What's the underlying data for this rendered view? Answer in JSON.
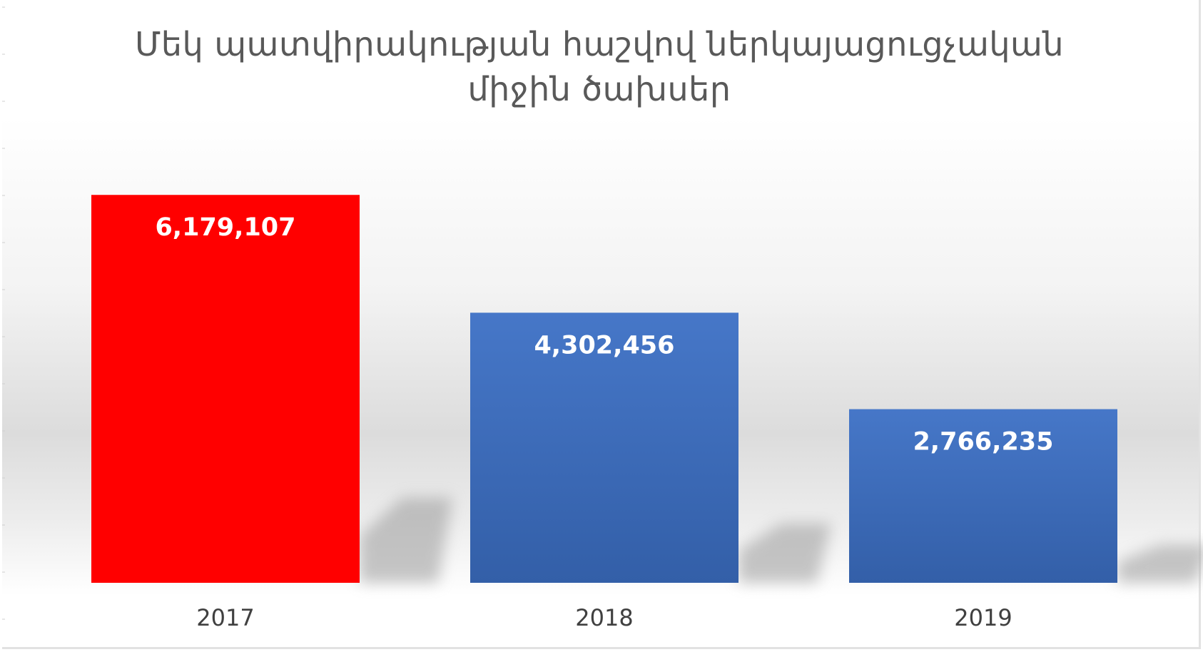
{
  "chart_data": {
    "type": "bar",
    "title_lines": [
      "Մեկ պատվիրակության հաշվով ներկայացուցչական",
      "միջին ծախսեր"
    ],
    "categories": [
      "2017",
      "2018",
      "2019"
    ],
    "values": [
      6179107,
      4302456,
      2766235
    ],
    "data_labels": [
      "6,179,107",
      "4,302,456",
      "2,766,235"
    ],
    "bar_colors": [
      "#ff0000",
      "#4472c4",
      "#4472c4"
    ],
    "ylim": [
      0,
      8000000
    ],
    "grid": false,
    "legend": "none"
  }
}
